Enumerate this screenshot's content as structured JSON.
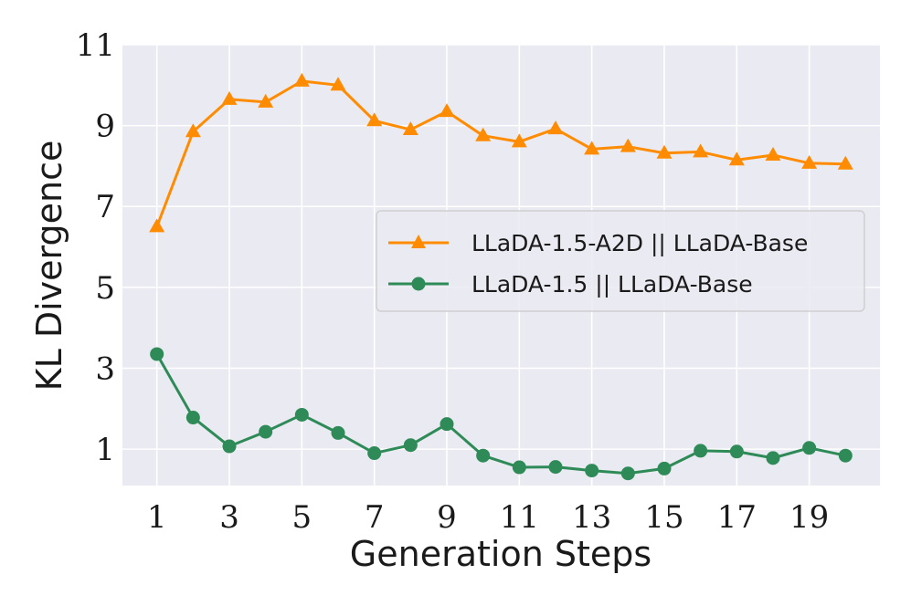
{
  "chart_data": {
    "type": "line",
    "title": "",
    "xlabel": "Generation Steps",
    "ylabel": "KL Divergence",
    "x": [
      1,
      2,
      3,
      4,
      5,
      6,
      7,
      8,
      9,
      10,
      11,
      12,
      13,
      14,
      15,
      16,
      17,
      18,
      19,
      20
    ],
    "xlim": [
      0.05,
      20.95
    ],
    "ylim": [
      0.1,
      11
    ],
    "xticks": [
      1,
      3,
      5,
      7,
      9,
      11,
      13,
      15,
      17,
      19
    ],
    "xtick_labels": [
      "1",
      "3",
      "5",
      "7",
      "9",
      "11",
      "13",
      "15",
      "17",
      "19"
    ],
    "yticks": [
      1,
      3,
      5,
      7,
      9,
      11
    ],
    "ytick_labels": [
      "1",
      "3",
      "5",
      "7",
      "9",
      "11"
    ],
    "grid": true,
    "legend_position": "center-right",
    "series": [
      {
        "name": "LLaDA-1.5-A2D || LLaDA-Base",
        "color": "#ff8c00",
        "marker": "triangle",
        "values": [
          6.5,
          8.85,
          9.65,
          9.58,
          10.1,
          10.0,
          9.12,
          8.9,
          9.35,
          8.75,
          8.6,
          8.92,
          8.42,
          8.48,
          8.32,
          8.35,
          8.15,
          8.27,
          8.07,
          8.05
        ]
      },
      {
        "name": "LLaDA-1.5 || LLaDA-Base",
        "color": "#2e8b57",
        "marker": "circle",
        "values": [
          3.35,
          1.78,
          1.07,
          1.43,
          1.85,
          1.4,
          0.9,
          1.1,
          1.62,
          0.84,
          0.55,
          0.56,
          0.47,
          0.4,
          0.52,
          0.96,
          0.94,
          0.78,
          1.03,
          0.84
        ]
      }
    ]
  }
}
